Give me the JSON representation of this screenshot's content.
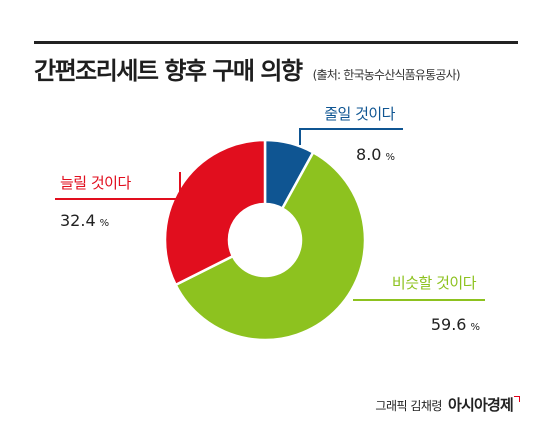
{
  "header": {
    "title": "간편조리세트 향후 구매 의향",
    "source": "(출처: 한국농수산식품유통공사)"
  },
  "chart_data": {
    "type": "pie",
    "donut": true,
    "title": "간편조리세트 향후 구매 의향",
    "unit": "%",
    "slices": [
      {
        "label": "줄일 것이다",
        "value": 8.0,
        "value_text": "8.0",
        "color": "#0f5592"
      },
      {
        "label": "비슷할 것이다",
        "value": 59.6,
        "value_text": "59.6",
        "color": "#8dc21f"
      },
      {
        "label": "늘릴 것이다",
        "value": 32.4,
        "value_text": "32.4",
        "color": "#e10e1e"
      }
    ]
  },
  "footer": {
    "credit": "그래픽 김채령",
    "brand": "아시아경제"
  }
}
